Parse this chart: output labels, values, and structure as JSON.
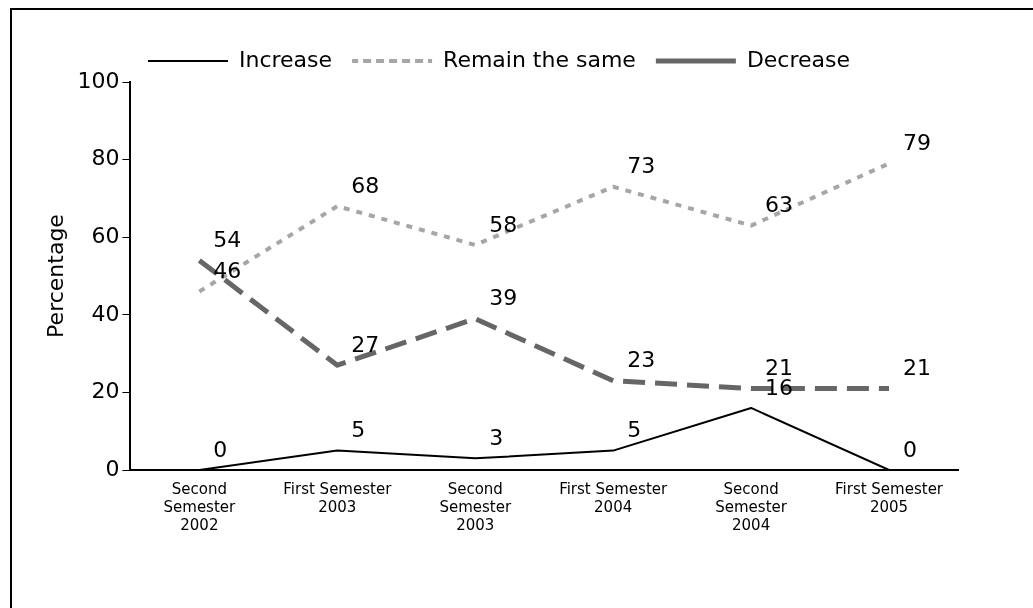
{
  "chart_data": {
    "type": "line",
    "ylabel": "Percentage",
    "categories": [
      [
        "Second",
        "Semester",
        "2002"
      ],
      [
        "First Semester",
        "2003"
      ],
      [
        "Second",
        "Semester",
        "2003"
      ],
      [
        "First Semester",
        "2004"
      ],
      [
        "Second",
        "Semester",
        "2004"
      ],
      [
        "First Semester",
        "2005"
      ]
    ],
    "series": [
      {
        "name": "Increase",
        "color": "#000000",
        "line_style": "solid",
        "values": [
          0,
          5,
          3,
          5,
          16,
          0
        ]
      },
      {
        "name": "Remain the same",
        "color": "#a6a6a6",
        "line_style": "dotted",
        "values": [
          46,
          68,
          58,
          73,
          63,
          79
        ]
      },
      {
        "name": "Decrease",
        "color": "#666666",
        "line_style": "dashed",
        "values": [
          54,
          27,
          39,
          23,
          21,
          21
        ]
      }
    ],
    "ylim": [
      0,
      100
    ],
    "yticks": [
      0,
      20,
      40,
      60,
      80,
      100
    ],
    "grid": false,
    "legend": "top",
    "marker": "none",
    "data_labels": true
  }
}
